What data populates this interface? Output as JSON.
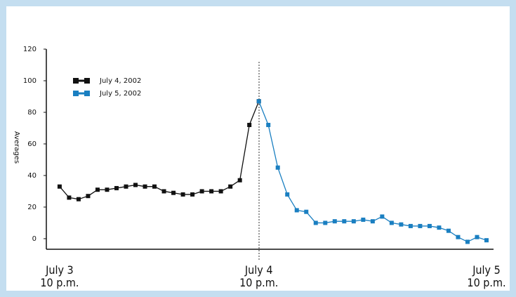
{
  "chart_data": {
    "type": "line",
    "y_label": "Averages",
    "series": [
      {
        "name": "July 4, 2002",
        "color": "#111111",
        "x": [
          -21,
          -20,
          -19,
          -18,
          -17,
          -16,
          -15,
          -14,
          -13,
          -12,
          -11,
          -10,
          -9,
          -8,
          -7,
          -6,
          -5,
          -4,
          -3,
          -2,
          -1,
          0
        ],
        "values": [
          33,
          26,
          25,
          27,
          31,
          31,
          32,
          33,
          34,
          33,
          33,
          30,
          29,
          28,
          28,
          30,
          30,
          30,
          33,
          37,
          72,
          87
        ]
      },
      {
        "name": "July 5, 2002",
        "color": "#1a7fc1",
        "x": [
          0,
          1,
          2,
          3,
          4,
          5,
          6,
          7,
          8,
          9,
          10,
          11,
          12,
          13,
          14,
          15,
          16,
          17,
          18,
          19,
          20,
          21,
          22,
          23,
          24
        ],
        "values": [
          87,
          72,
          45,
          28,
          18,
          17,
          10,
          10,
          11,
          11,
          11,
          12,
          11,
          14,
          10,
          9,
          8,
          8,
          8,
          7,
          5,
          1,
          -2,
          1,
          -1
        ]
      }
    ],
    "xlim": [
      -22.4,
      24
    ],
    "xticks": [
      {
        "value": -21,
        "label": "July 3\n10 p.m."
      },
      {
        "value": 0,
        "label": "July 4\n10 p.m."
      },
      {
        "value": 24,
        "label": "July 5\n10 p.m."
      }
    ],
    "ylim": [
      -6.7,
      120
    ],
    "yticks": [
      0,
      20,
      40,
      60,
      80,
      100,
      120
    ],
    "legend": "upper left"
  }
}
